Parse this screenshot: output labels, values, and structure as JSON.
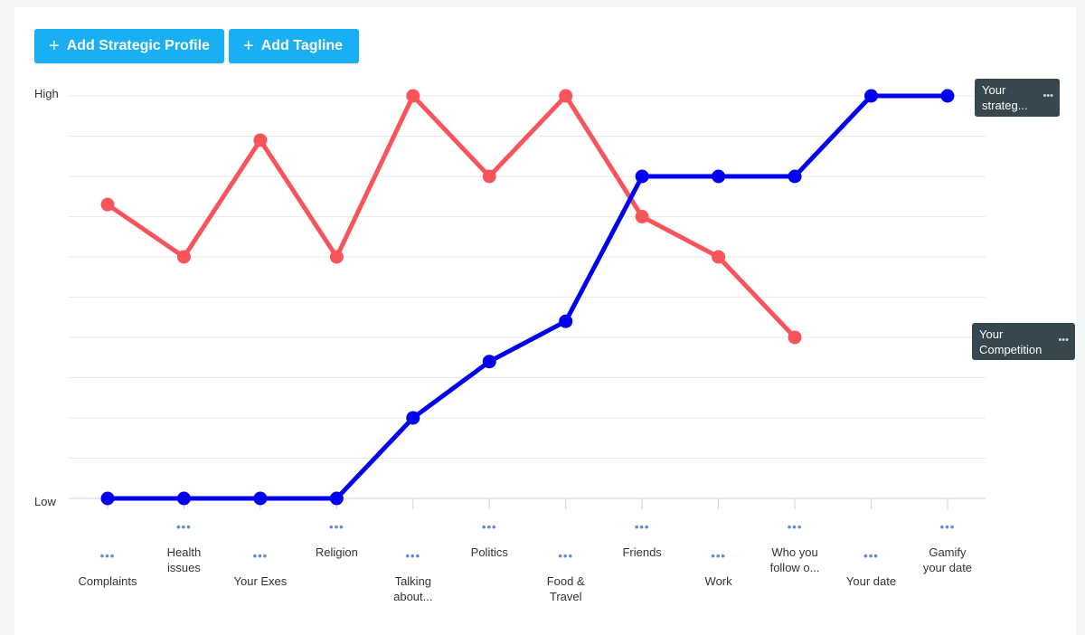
{
  "toolbar": {
    "add_profile_label": "Add Strategic Profile",
    "add_tagline_label": "Add Tagline",
    "plus_icon": "+"
  },
  "chart_data": {
    "type": "line",
    "categories": [
      "Complaints",
      "Health issues",
      "Your Exes",
      "Religion",
      "Talking about...",
      "Politics",
      "Food & Travel",
      "Friends",
      "Work",
      "Who you follow o...",
      "Your date",
      "Gamify your date"
    ],
    "category_lines": [
      [
        "Complaints"
      ],
      [
        "Health",
        "issues"
      ],
      [
        "Your Exes"
      ],
      [
        "Religion"
      ],
      [
        "Talking",
        "about..."
      ],
      [
        "Politics"
      ],
      [
        "Food &",
        "Travel"
      ],
      [
        "Friends"
      ],
      [
        "Work"
      ],
      [
        "Who you",
        "follow o..."
      ],
      [
        "Your date"
      ],
      [
        "Gamify",
        "your date"
      ]
    ],
    "ylabel_high": "High",
    "ylabel_low": "Low",
    "ylim": [
      0,
      10
    ],
    "grid": true,
    "series": [
      {
        "name": "Your strateg...",
        "color": "#0000ee",
        "values": [
          0,
          0,
          0,
          0,
          2,
          3.4,
          4.4,
          8,
          8,
          8,
          10,
          10
        ]
      },
      {
        "name": "Your Competition",
        "color": "#f9545b",
        "values": [
          7.3,
          6,
          8.9,
          6,
          10,
          8,
          10,
          7,
          6,
          4,
          null,
          null
        ]
      }
    ],
    "more_glyph": "•••"
  }
}
